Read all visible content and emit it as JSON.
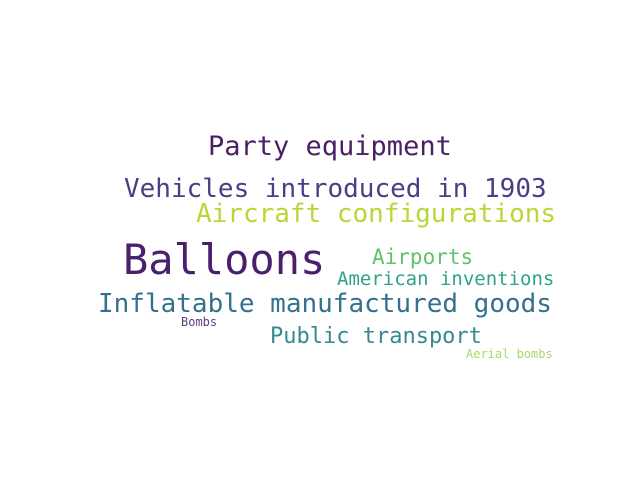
{
  "word_cloud": {
    "words": [
      {
        "text": "Party equipment",
        "color": "#4a1f63"
      },
      {
        "text": "Vehicles introduced in 1903",
        "color": "#4a3f86"
      },
      {
        "text": "Aircraft configurations",
        "color": "#b8d837"
      },
      {
        "text": "Balloons",
        "color": "#4a1f6e"
      },
      {
        "text": "Airports",
        "color": "#5dc46a"
      },
      {
        "text": "American inventions",
        "color": "#2da48a"
      },
      {
        "text": "Inflatable manufactured goods",
        "color": "#33718f"
      },
      {
        "text": "Bombs",
        "color": "#5a3f80"
      },
      {
        "text": "Public transport",
        "color": "#35898f"
      },
      {
        "text": "Aerial bombs",
        "color": "#a6d86a"
      }
    ]
  }
}
